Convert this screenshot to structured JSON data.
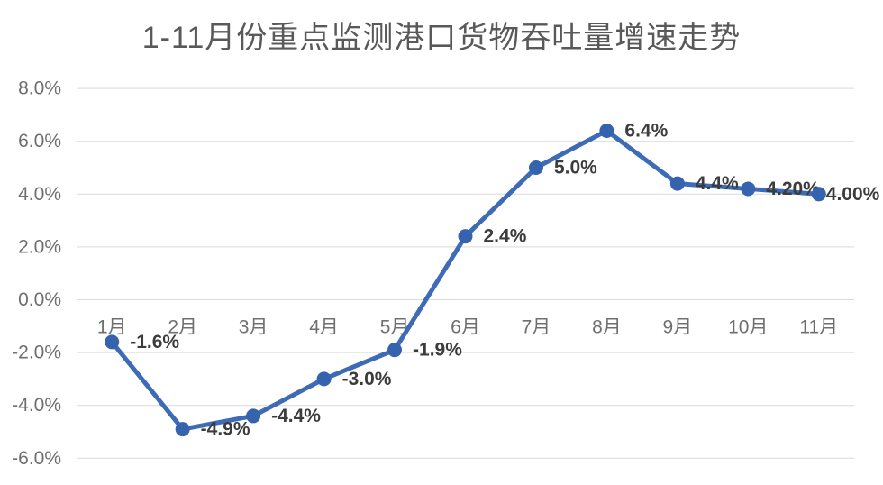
{
  "title": "1-11月份重点监测港口货物吞吐量增速走势",
  "colors": {
    "background": "#FFFFFF",
    "line": "#3E6BB5",
    "marker": "#3663AE",
    "gridline": "#D9D9D9",
    "axis_label": "#6F6F6F",
    "data_label": "#3C3C3C",
    "title_color": "#595959"
  },
  "chart_data": {
    "type": "line",
    "title": "1-11月份重点监测港口货物吞吐量增速走势",
    "categories": [
      "1月",
      "2月",
      "3月",
      "4月",
      "5月",
      "6月",
      "7月",
      "8月",
      "9月",
      "10月",
      "11月"
    ],
    "values": [
      -1.6,
      -4.9,
      -4.4,
      -3.0,
      -1.9,
      2.4,
      5.0,
      6.4,
      4.4,
      4.2,
      4.0
    ],
    "data_labels": [
      "-1.6%",
      "-4.9%",
      "-4.4%",
      "-3.0%",
      "-1.9%",
      "2.4%",
      "5.0%",
      "6.4%",
      "4.4%",
      "4.20%",
      "4.00%"
    ],
    "y_ticks": [
      "8.0%",
      "6.0%",
      "4.0%",
      "2.0%",
      "0.0%",
      "-2.0%",
      "-4.0%",
      "-6.0%"
    ],
    "y_tick_values": [
      8,
      6,
      4,
      2,
      0,
      -2,
      -4,
      -6
    ],
    "ylim": [
      -6,
      8
    ],
    "xlabel": "",
    "ylabel": "",
    "grid": true,
    "legend": false
  }
}
